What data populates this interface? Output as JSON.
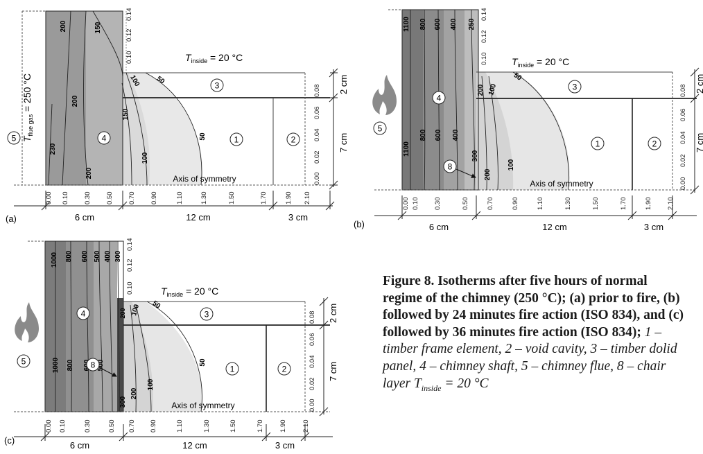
{
  "panels": [
    {
      "label": "(a)",
      "t_inside_label": "T",
      "t_inside_sub": "inside",
      "t_inside_rest": " = 20 °C",
      "flue_label": "T",
      "flue_sub": "flue gas",
      "flue_rest": " = 250 °C",
      "axis_label": "Axis of symmetry",
      "x_ticks": [
        "0.00",
        "0.10",
        "0.30",
        "0.50",
        "0.70",
        "0.90",
        "1.10",
        "1.30",
        "1.50",
        "1.70",
        "1.90",
        "2.10"
      ],
      "y_ticks": [
        "0.00",
        "0.02",
        "0.04",
        "0.06",
        "0.08",
        "0.10",
        "0.12",
        "0.14"
      ],
      "dims_bottom": [
        "6 cm",
        "12 cm",
        "3 cm"
      ],
      "dims_right": [
        "2 cm",
        "7 cm"
      ],
      "zones": [
        "5",
        "4",
        "3",
        "1",
        "2"
      ],
      "isotherms_left": [
        "200",
        "150",
        "200",
        "230",
        "200"
      ],
      "isotherms_right": [
        "100",
        "50",
        "150",
        "100",
        "50"
      ]
    },
    {
      "label": "(b)",
      "t_inside_label": "T",
      "t_inside_sub": "inside",
      "t_inside_rest": " = 20 °C",
      "axis_label": "Axis of symmetry",
      "x_ticks": [
        "0.00",
        "0.10",
        "0.30",
        "0.50",
        "0.70",
        "0.90",
        "1.10",
        "1.30",
        "1.50",
        "1.70",
        "1.90",
        "2.10"
      ],
      "y_ticks": [
        "0.00",
        "0.02",
        "0.04",
        "0.06",
        "0.08",
        "0.10",
        "0.12",
        "0.14"
      ],
      "dims_bottom": [
        "6 cm",
        "12 cm",
        "3 cm"
      ],
      "dims_right": [
        "2 cm",
        "7 cm"
      ],
      "zones": [
        "5",
        "4",
        "8",
        "3",
        "1",
        "2"
      ],
      "isotherms_left": [
        "1100",
        "800",
        "600",
        "400",
        "250",
        "1100",
        "800",
        "600",
        "400",
        "300"
      ],
      "isotherms_right": [
        "200",
        "100",
        "50",
        "200",
        "100"
      ]
    },
    {
      "label": "(c)",
      "t_inside_label": "T",
      "t_inside_sub": "inside",
      "t_inside_rest": " = 20 °C",
      "axis_label": "Axis of symmetry",
      "x_ticks": [
        "0.00",
        "0.10",
        "0.30",
        "0.50",
        "0.70",
        "0.90",
        "1.10",
        "1.30",
        "1.50",
        "1.70",
        "1.90",
        "2.10"
      ],
      "y_ticks": [
        "0.00",
        "0.02",
        "0.04",
        "0.06",
        "0.08",
        "0.10",
        "0.12",
        "0.14"
      ],
      "dims_bottom": [
        "6 cm",
        "12 cm",
        "3 cm"
      ],
      "dims_right": [
        "2 cm",
        "7 cm"
      ],
      "zones": [
        "5",
        "4",
        "8",
        "3",
        "1",
        "2"
      ],
      "isotherms_left": [
        "1000",
        "800",
        "600",
        "500",
        "400",
        "300",
        "1000",
        "800",
        "600",
        "500"
      ],
      "isotherms_right": [
        "200",
        "100",
        "50",
        "300",
        "200",
        "100",
        "50"
      ]
    }
  ],
  "caption": {
    "bold": "Figure 8. Isotherms after five hours of normal regime of the chimney (250 °C); (a) prior to fire, (b) followed by 24 minutes fire action (ISO 834), and (c) followed by 36 minutes fire action (ISO 834);",
    "italic": " 1 – timber frame element, 2 – void cavity, 3 – timber dolid panel, 4 – chimney shaft, 5 – chimney flue, 8 – chair layer T",
    "italic_sub": "inside",
    "italic_rest": " = 20 °C"
  }
}
